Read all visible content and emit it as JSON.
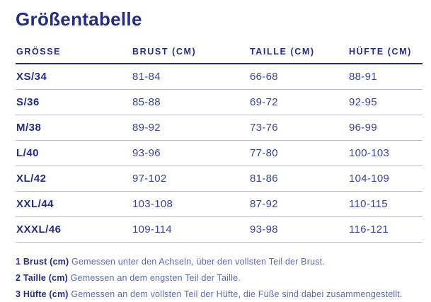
{
  "page": {
    "title": "Größentabelle"
  },
  "table": {
    "columns": [
      {
        "label": "GRÖSSE"
      },
      {
        "label": "BRUST (CM)"
      },
      {
        "label": "TAILLE (CM)"
      },
      {
        "label": "HÜFTE (CM)"
      }
    ],
    "rows": [
      {
        "size": "XS/34",
        "brust": "81-84",
        "taille": "66-68",
        "huefte": "88-91"
      },
      {
        "size": "S/36",
        "brust": "85-88",
        "taille": "69-72",
        "huefte": "92-95"
      },
      {
        "size": "M/38",
        "brust": "89-92",
        "taille": "73-76",
        "huefte": "96-99"
      },
      {
        "size": "L/40",
        "brust": "93-96",
        "taille": "77-80",
        "huefte": "100-103"
      },
      {
        "size": "XL/42",
        "brust": "97-102",
        "taille": "81-86",
        "huefte": "104-109"
      },
      {
        "size": "XXL/44",
        "brust": "103-108",
        "taille": "87-92",
        "huefte": "110-115"
      },
      {
        "size": "XXXL/46",
        "brust": "109-114",
        "taille": "93-98",
        "huefte": "116-121"
      }
    ]
  },
  "footnotes": [
    {
      "label": "1 Brust (cm)",
      "text": "Gemessen unter den Achseln, über den vollsten Teil der Brust."
    },
    {
      "label": "2 Taille (cm)",
      "text": "Gemessen an dem engsten Teil der Taille."
    },
    {
      "label": "3 Hüfte (cm)",
      "text": "Gemessen an dem vollsten Teil der Hüfte, die Füße sind dabei zusammengestellt."
    }
  ],
  "colors": {
    "primary": "#252d7f",
    "value_text": "#3a4490",
    "note_text": "#5b6bad",
    "row_divider": "#b5bad6",
    "header_divider": "#233071",
    "background": "#ffffff"
  }
}
